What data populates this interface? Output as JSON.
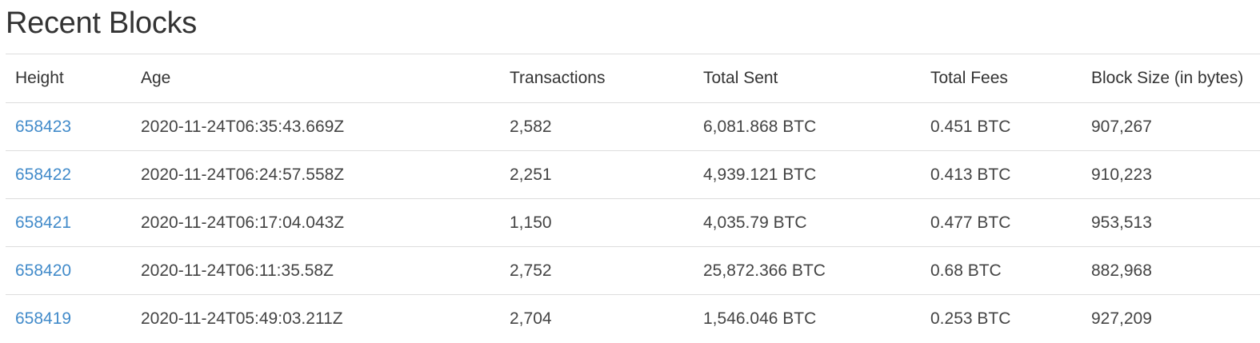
{
  "page": {
    "title": "Recent Blocks"
  },
  "table": {
    "headers": {
      "height": "Height",
      "age": "Age",
      "transactions": "Transactions",
      "total_sent": "Total Sent",
      "total_fees": "Total Fees",
      "block_size": "Block Size (in bytes)"
    },
    "rows": [
      {
        "height": "658423",
        "age": "2020-11-24T06:35:43.669Z",
        "transactions": "2,582",
        "total_sent": "6,081.868 BTC",
        "total_fees": "0.451 BTC",
        "block_size": "907,267"
      },
      {
        "height": "658422",
        "age": "2020-11-24T06:24:57.558Z",
        "transactions": "2,251",
        "total_sent": "4,939.121 BTC",
        "total_fees": "0.413 BTC",
        "block_size": "910,223"
      },
      {
        "height": "658421",
        "age": "2020-11-24T06:17:04.043Z",
        "transactions": "1,150",
        "total_sent": "4,035.79 BTC",
        "total_fees": "0.477 BTC",
        "block_size": "953,513"
      },
      {
        "height": "658420",
        "age": "2020-11-24T06:11:35.58Z",
        "transactions": "2,752",
        "total_sent": "25,872.366 BTC",
        "total_fees": "0.68 BTC",
        "block_size": "882,968"
      },
      {
        "height": "658419",
        "age": "2020-11-24T05:49:03.211Z",
        "transactions": "2,704",
        "total_sent": "1,546.046 BTC",
        "total_fees": "0.253 BTC",
        "block_size": "927,209"
      }
    ]
  },
  "colors": {
    "link": "#428bca",
    "text": "#333333",
    "border": "#dddddd"
  }
}
